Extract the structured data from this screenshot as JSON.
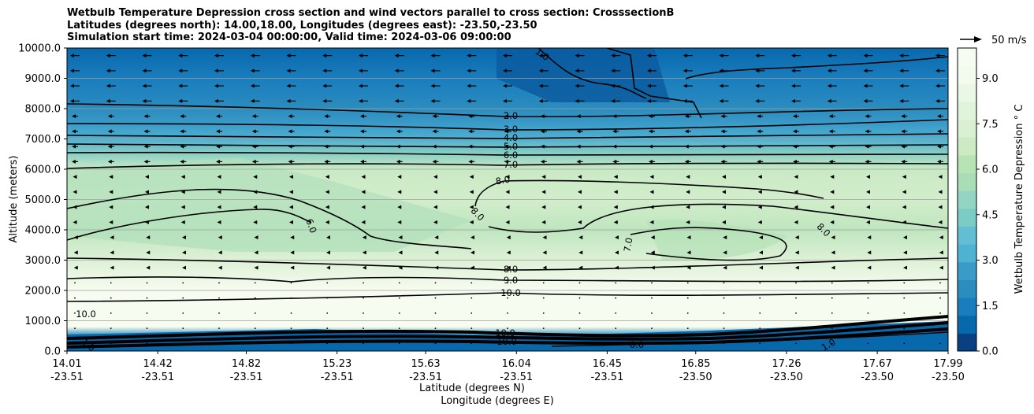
{
  "chart_data": {
    "type": "contourf",
    "title_lines": [
      "Wetbulb Temperature Depression cross section and wind vectors parallel to cross section: CrosssectionB",
      "Latitudes (degrees north): 14.00,18.00, Longitudes (degrees east): -23.50,-23.50",
      "Simulation start time: 2024-03-04 00:00:00, Valid time: 2024-03-06 09:00:00"
    ],
    "ylabel": "Altitude (meters)",
    "xlabel_lat": "Latitude (degrees N)",
    "xlabel_lon": "Longitude (degrees E)",
    "ylim": [
      0,
      10000
    ],
    "y_ticks": [
      "0.0",
      "1000.0",
      "2000.0",
      "3000.0",
      "4000.0",
      "5000.0",
      "6000.0",
      "7000.0",
      "8000.0",
      "9000.0",
      "10000.0"
    ],
    "x_ticks": [
      {
        "lat": "14.01",
        "lon": "-23.51"
      },
      {
        "lat": "14.42",
        "lon": "-23.51"
      },
      {
        "lat": "14.82",
        "lon": "-23.51"
      },
      {
        "lat": "15.23",
        "lon": "-23.51"
      },
      {
        "lat": "15.63",
        "lon": "-23.51"
      },
      {
        "lat": "16.04",
        "lon": "-23.51"
      },
      {
        "lat": "16.45",
        "lon": "-23.51"
      },
      {
        "lat": "16.85",
        "lon": "-23.50"
      },
      {
        "lat": "17.26",
        "lon": "-23.50"
      },
      {
        "lat": "17.67",
        "lon": "-23.50"
      },
      {
        "lat": "17.99",
        "lon": "-23.50"
      }
    ],
    "colorbar": {
      "label": "Wetbulb Temperature Depression $^\\circ$ C",
      "label_display": "Wetbulb Temperature Depression ° C",
      "range": [
        0,
        10
      ],
      "ticks": [
        "0.0",
        "1.5",
        "3.0",
        "4.5",
        "6.0",
        "7.5",
        "9.0"
      ],
      "colors": [
        "#084081",
        "#0868ac",
        "#1a7dbd",
        "#2b8cbe",
        "#3a9bc9",
        "#4eb3d3",
        "#62bed2",
        "#7bccc4",
        "#93d4c3",
        "#a8ddb5",
        "#b8e3b5",
        "#ccebc5",
        "#d9f0d3",
        "#e0f3db",
        "#ebf7e6",
        "#f3fbef",
        "#f7fcf0"
      ]
    },
    "quiver_key": "50 m/s",
    "contour_labels": [
      "1.0",
      "2.0",
      "3.0",
      "4.0",
      "5.0",
      "6.0",
      "7.0",
      "8.0",
      "8.0",
      "8.0",
      "8.0",
      "9.0",
      "10.0",
      "10.0",
      "6.0",
      "7.0",
      "10.0",
      "0.0",
      "1.0",
      "1.0",
      "10.0"
    ],
    "field_profile": [
      {
        "altitude": 0,
        "value": 0.5
      },
      {
        "altitude": 600,
        "value": 1.2
      },
      {
        "altitude": 1000,
        "value": 10.0
      },
      {
        "altitude": 2000,
        "value": 10.0
      },
      {
        "altitude": 3000,
        "value": 8.5
      },
      {
        "altitude": 4000,
        "value": 7.2
      },
      {
        "altitude": 5000,
        "value": 8.0
      },
      {
        "altitude": 6000,
        "value": 7.0
      },
      {
        "altitude": 6500,
        "value": 5.5
      },
      {
        "altitude": 7000,
        "value": 4.0
      },
      {
        "altitude": 7500,
        "value": 3.0
      },
      {
        "altitude": 8000,
        "value": 2.0
      },
      {
        "altitude": 9000,
        "value": 1.5
      },
      {
        "altitude": 10000,
        "value": 0.8
      }
    ]
  }
}
